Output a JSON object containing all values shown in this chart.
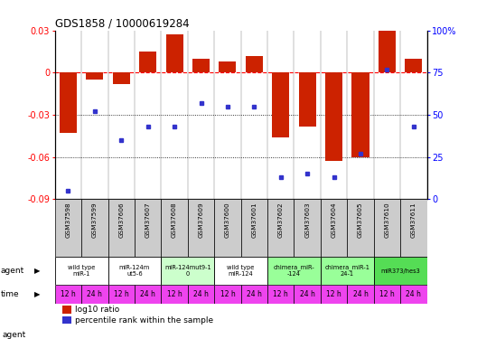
{
  "title": "GDS1858 / 10000619284",
  "samples": [
    "GSM37598",
    "GSM37599",
    "GSM37606",
    "GSM37607",
    "GSM37608",
    "GSM37609",
    "GSM37600",
    "GSM37601",
    "GSM37602",
    "GSM37603",
    "GSM37604",
    "GSM37605",
    "GSM37610",
    "GSM37611"
  ],
  "log10_ratio": [
    -0.043,
    -0.005,
    -0.008,
    0.015,
    0.027,
    0.01,
    0.008,
    0.012,
    -0.046,
    -0.038,
    -0.063,
    -0.06,
    0.03,
    0.01
  ],
  "percentile": [
    5,
    52,
    35,
    43,
    43,
    57,
    55,
    55,
    13,
    15,
    13,
    27,
    77,
    43
  ],
  "ylim_left": [
    -0.09,
    0.03
  ],
  "ylim_right": [
    0,
    100
  ],
  "yticks_left": [
    -0.09,
    -0.06,
    -0.03,
    0.0,
    0.03
  ],
  "yticks_right": [
    0,
    25,
    50,
    75,
    100
  ],
  "ytick_labels_left": [
    "-0.09",
    "-0.06",
    "-0.03",
    "0",
    "0.03"
  ],
  "ytick_labels_right": [
    "0",
    "25",
    "50",
    "75",
    "100%"
  ],
  "dotted_lines": [
    -0.03,
    -0.06
  ],
  "bar_color": "#cc2200",
  "dot_color": "#3333cc",
  "agent_groups": [
    {
      "label": "wild type\nmiR-1",
      "cols": [
        0,
        1
      ],
      "color": "#ffffff"
    },
    {
      "label": "miR-124m\nut5-6",
      "cols": [
        2,
        3
      ],
      "color": "#ffffff"
    },
    {
      "label": "miR-124mut9-1\n0",
      "cols": [
        4,
        5
      ],
      "color": "#ccffcc"
    },
    {
      "label": "wild type\nmiR-124",
      "cols": [
        6,
        7
      ],
      "color": "#ffffff"
    },
    {
      "label": "chimera_miR-\n-124",
      "cols": [
        8,
        9
      ],
      "color": "#99ff99"
    },
    {
      "label": "chimera_miR-1\n24-1",
      "cols": [
        10,
        11
      ],
      "color": "#99ff99"
    },
    {
      "label": "miR373/hes3",
      "cols": [
        12,
        13
      ],
      "color": "#55dd55"
    }
  ],
  "time_labels": [
    "12 h",
    "24 h",
    "12 h",
    "24 h",
    "12 h",
    "24 h",
    "12 h",
    "24 h",
    "12 h",
    "24 h",
    "12 h",
    "24 h",
    "12 h",
    "24 h"
  ],
  "time_color": "#ee44ee",
  "sample_bg_color": "#cccccc",
  "legend_bar_label": "log10 ratio",
  "legend_dot_label": "percentile rank within the sample"
}
